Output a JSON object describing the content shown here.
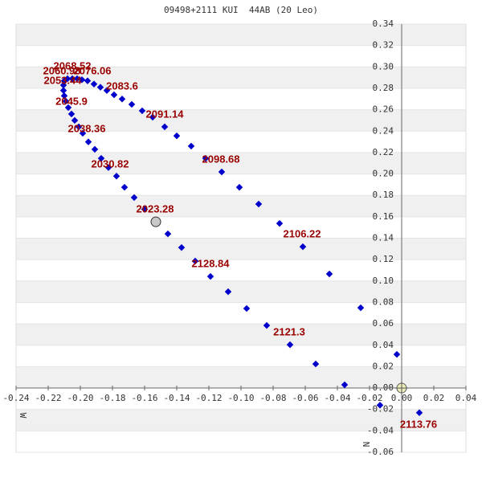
{
  "chart_data": {
    "type": "scatter",
    "title": "09498+2111 KUI  44AB (20 Leo)",
    "x_label": "W",
    "y_label": "N",
    "color": "#0000cc",
    "x": [
      0.011,
      -0.0135,
      -0.0355,
      -0.0535,
      -0.0695,
      -0.084,
      -0.0965,
      -0.108,
      -0.119,
      -0.1285,
      -0.137,
      -0.1455,
      -0.16,
      -0.1665,
      -0.1725,
      -0.1775,
      -0.1825,
      -0.187,
      -0.191,
      -0.195,
      -0.1985,
      -0.201,
      -0.2035,
      -0.2055,
      -0.2075,
      -0.209,
      -0.21,
      -0.2105,
      -0.2105,
      -0.21,
      -0.208,
      -0.205,
      -0.202,
      -0.199,
      -0.1955,
      -0.1915,
      -0.1875,
      -0.1835,
      -0.179,
      -0.174,
      -0.168,
      -0.1615,
      -0.155,
      -0.1475,
      -0.14,
      -0.131,
      -0.122,
      -0.112,
      -0.101,
      -0.089,
      -0.076,
      -0.0615,
      -0.045,
      -0.0255,
      -0.003
    ],
    "values": [
      -0.023,
      -0.016,
      0.003,
      0.0225,
      0.0405,
      0.0585,
      0.0743,
      0.09,
      0.1043,
      0.1186,
      0.1313,
      0.144,
      0.167,
      0.178,
      0.1876,
      0.198,
      0.206,
      0.2146,
      0.223,
      0.23,
      0.238,
      0.244,
      0.25,
      0.256,
      0.262,
      0.268,
      0.273,
      0.278,
      0.283,
      0.287,
      0.289,
      0.289,
      0.289,
      0.288,
      0.287,
      0.284,
      0.281,
      0.278,
      0.274,
      0.27,
      0.265,
      0.259,
      0.253,
      0.244,
      0.2356,
      0.226,
      0.2146,
      0.2019,
      0.1876,
      0.1719,
      0.1538,
      0.132,
      0.1066,
      0.075,
      0.0315
    ],
    "primary": {
      "x": 0,
      "y": 0
    },
    "current": {
      "x": -0.153,
      "y": 0.1553
    },
    "annotations": [
      {
        "text": "2068.52",
        "x": -0.205,
        "y": 0.3
      },
      {
        "text": "2060.98",
        "x": -0.2115,
        "y": 0.2957
      },
      {
        "text": "2076.06",
        "x": -0.1925,
        "y": 0.2957
      },
      {
        "text": "2053.44",
        "x": -0.211,
        "y": 0.2867
      },
      {
        "text": "2045.9",
        "x": -0.2055,
        "y": 0.2672
      },
      {
        "text": "2038.36",
        "x": -0.196,
        "y": 0.2417
      },
      {
        "text": "2030.82",
        "x": -0.1815,
        "y": 0.2086
      },
      {
        "text": "2023.28",
        "x": -0.1535,
        "y": 0.1666
      },
      {
        "text": "2083.6",
        "x": -0.174,
        "y": 0.2814
      },
      {
        "text": "2091.14",
        "x": -0.1475,
        "y": 0.2552
      },
      {
        "text": "2098.68",
        "x": -0.1125,
        "y": 0.2131
      },
      {
        "text": "2106.22",
        "x": -0.062,
        "y": 0.1433
      },
      {
        "text": "2128.84",
        "x": -0.119,
        "y": 0.1156
      },
      {
        "text": "2121.3",
        "x": -0.07,
        "y": 0.0518
      },
      {
        "text": "2113.76",
        "x": 0.0105,
        "y": -0.0345
      }
    ],
    "xlim": [
      -0.24,
      0.04
    ],
    "ylim": [
      -0.06,
      0.34
    ],
    "xticks": [
      {
        "value": -0.24,
        "label": "-0.24"
      },
      {
        "value": -0.22,
        "label": "-0.22"
      },
      {
        "value": -0.2,
        "label": "-0.20"
      },
      {
        "value": -0.18,
        "label": "-0.18"
      },
      {
        "value": -0.16,
        "label": "-0.16"
      },
      {
        "value": -0.14,
        "label": "-0.14"
      },
      {
        "value": -0.12,
        "label": "-0.12"
      },
      {
        "value": -0.1,
        "label": "-0.10"
      },
      {
        "value": -0.08,
        "label": "-0.08"
      },
      {
        "value": -0.06,
        "label": "-0.06"
      },
      {
        "value": -0.04,
        "label": "-0.04"
      },
      {
        "value": -0.02,
        "label": "-0.02"
      },
      {
        "value": 0,
        "label": "0.00"
      },
      {
        "value": 0.02,
        "label": "0.02"
      },
      {
        "value": 0.04,
        "label": "0.04"
      }
    ],
    "yticks": [
      {
        "value": -0.06,
        "label": "-0.06"
      },
      {
        "value": -0.04,
        "label": "-0.04"
      },
      {
        "value": -0.02,
        "label": "-0.02"
      },
      {
        "value": 0,
        "label": "0.00"
      },
      {
        "value": 0.02,
        "label": "0.02"
      },
      {
        "value": 0.04,
        "label": "0.04"
      },
      {
        "value": 0.06,
        "label": "0.06"
      },
      {
        "value": 0.08,
        "label": "0.08"
      },
      {
        "value": 0.1,
        "label": "0.10"
      },
      {
        "value": 0.12,
        "label": "0.12"
      },
      {
        "value": 0.14,
        "label": "0.14"
      },
      {
        "value": 0.16,
        "label": "0.16"
      },
      {
        "value": 0.18,
        "label": "0.18"
      },
      {
        "value": 0.2,
        "label": "0.20"
      },
      {
        "value": 0.22,
        "label": "0.22"
      },
      {
        "value": 0.24,
        "label": "0.24"
      },
      {
        "value": 0.26,
        "label": "0.26"
      },
      {
        "value": 0.28,
        "label": "0.28"
      },
      {
        "value": 0.3,
        "label": "0.30"
      },
      {
        "value": 0.32,
        "label": "0.32"
      },
      {
        "value": 0.34,
        "label": "0.34"
      }
    ]
  }
}
